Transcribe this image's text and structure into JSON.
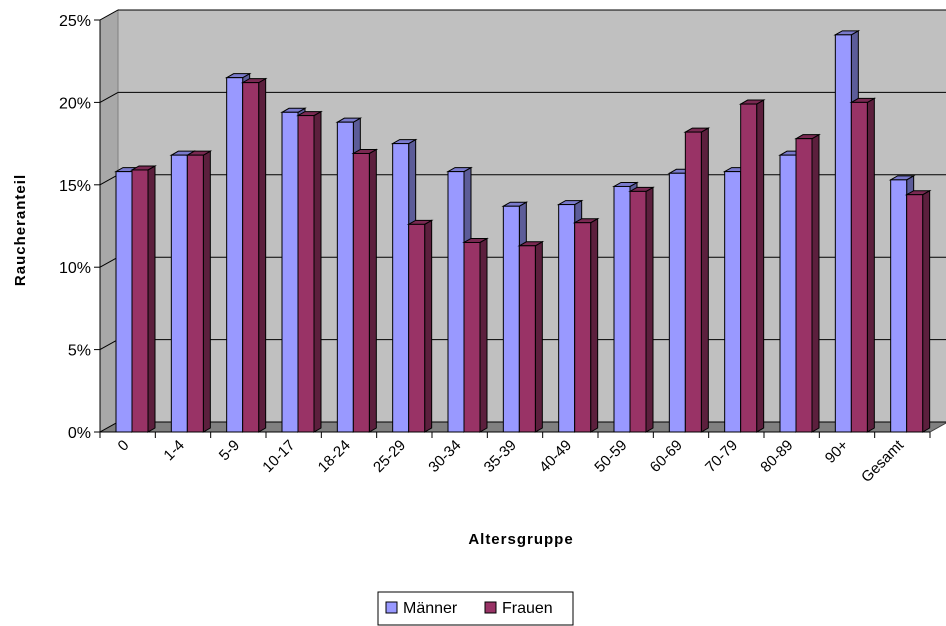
{
  "chart_data": {
    "type": "bar",
    "xlabel": "Altersgruppe",
    "ylabel": "Raucheranteil",
    "ylim": [
      0,
      25
    ],
    "yticks": [
      "0%",
      "5%",
      "10%",
      "15%",
      "20%",
      "25%"
    ],
    "grid": true,
    "legend_position": "bottom",
    "categories": [
      "0",
      "1-4",
      "5-9",
      "10-17",
      "18-24",
      "25-29",
      "30-34",
      "35-39",
      "40-49",
      "50-59",
      "60-69",
      "70-79",
      "80-89",
      "90+",
      "Gesamt"
    ],
    "series": [
      {
        "name": "Männer",
        "color": "#9999ff",
        "values": [
          15.8,
          16.8,
          21.5,
          19.4,
          18.8,
          17.5,
          15.8,
          13.7,
          13.8,
          14.9,
          15.7,
          15.8,
          16.8,
          24.1,
          15.3
        ]
      },
      {
        "name": "Frauen",
        "color": "#993366",
        "values": [
          15.9,
          16.8,
          21.2,
          19.2,
          16.9,
          12.6,
          11.5,
          11.3,
          12.7,
          14.6,
          18.2,
          19.9,
          17.8,
          20.0,
          14.4
        ]
      }
    ]
  }
}
